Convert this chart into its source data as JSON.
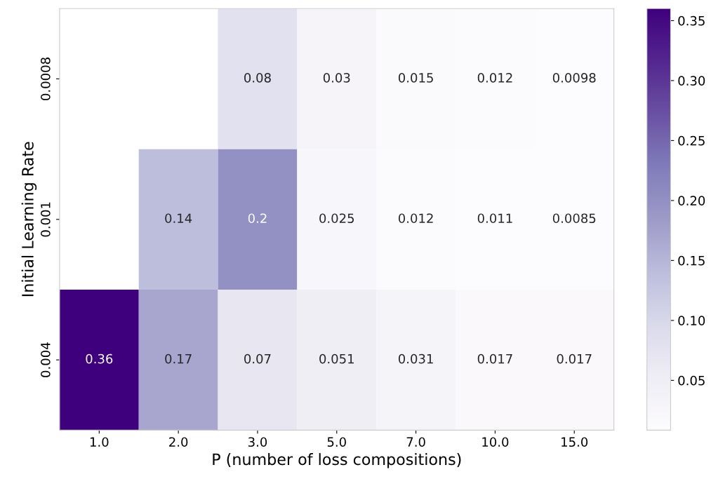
{
  "chart_data": {
    "type": "heatmap",
    "xlabel": "P (number of loss compositions)",
    "ylabel": "Initial Learning Rate",
    "categories": [
      "1.0",
      "2.0",
      "3.0",
      "5.0",
      "7.0",
      "10.0",
      "15.0"
    ],
    "y_categories": [
      "0.0008",
      "0.001",
      "0.004"
    ],
    "cells": [
      [
        null,
        null,
        0.08,
        0.03,
        0.015,
        0.012,
        0.0098
      ],
      [
        null,
        0.14,
        0.2,
        0.025,
        0.012,
        0.011,
        0.0085
      ],
      [
        0.36,
        0.17,
        0.07,
        0.051,
        0.031,
        0.017,
        0.017
      ]
    ],
    "data_labels": true,
    "clim": [
      0.0085,
      0.36
    ],
    "cticks": [
      0.05,
      {
        "value": 0.1,
        "label": "0.10"
      },
      0.15,
      {
        "value": 0.2,
        "label": "0.20"
      },
      0.25,
      {
        "value": 0.3,
        "label": "0.30"
      },
      0.35
    ]
  }
}
